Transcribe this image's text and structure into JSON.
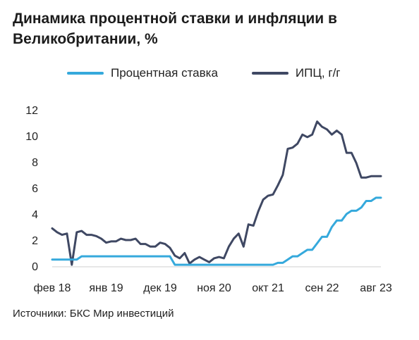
{
  "title": "Динамика процентной ставки и инфляции в Великобритании, %",
  "source": "Источники: БКС Мир инвестиций",
  "colors": {
    "rate": "#35a9dc",
    "cpi": "#3f4863",
    "axis": "#222222"
  },
  "chart_data": {
    "type": "line",
    "x_unit": "month index from Feb 2018",
    "ylim": [
      0,
      12
    ],
    "yticks": [
      0,
      2,
      4,
      6,
      8,
      10,
      12
    ],
    "xticks": [
      {
        "label": "фев 18",
        "x": 0
      },
      {
        "label": "янв 19",
        "x": 11
      },
      {
        "label": "дек 19",
        "x": 22
      },
      {
        "label": "ноя 20",
        "x": 33
      },
      {
        "label": "окт 21",
        "x": 44
      },
      {
        "label": "сен 22",
        "x": 55
      },
      {
        "label": "авг 23",
        "x": 66
      }
    ],
    "legend": [
      "Процентная ставка",
      "ИПЦ, г/г"
    ],
    "series": [
      {
        "name": "Процентная ставка",
        "color": "#35a9dc",
        "x": [
          0,
          5,
          6,
          24,
          25,
          26,
          45,
          46,
          47,
          48,
          49,
          50,
          51,
          52,
          53,
          54,
          55,
          56,
          57,
          58,
          59,
          60,
          61,
          62,
          63,
          64,
          65,
          66,
          67
        ],
        "values": [
          0.5,
          0.5,
          0.75,
          0.75,
          0.1,
          0.1,
          0.1,
          0.25,
          0.25,
          0.5,
          0.75,
          0.75,
          1.0,
          1.25,
          1.25,
          1.75,
          2.25,
          2.25,
          3.0,
          3.5,
          3.5,
          4.0,
          4.25,
          4.25,
          4.5,
          5.0,
          5.0,
          5.25,
          5.25
        ]
      },
      {
        "name": "ИПЦ, г/г",
        "color": "#3f4863",
        "x": [
          0,
          1,
          2,
          3,
          4,
          5,
          6,
          7,
          8,
          9,
          10,
          11,
          12,
          13,
          14,
          15,
          16,
          17,
          18,
          19,
          20,
          21,
          22,
          23,
          24,
          25,
          26,
          27,
          28,
          29,
          30,
          31,
          32,
          33,
          34,
          35,
          36,
          37,
          38,
          39,
          40,
          41,
          42,
          43,
          44,
          45,
          46,
          47,
          48,
          49,
          50,
          51,
          52,
          53,
          54,
          55,
          56,
          57,
          58,
          59,
          60,
          61,
          62,
          63,
          64,
          65,
          66,
          67
        ],
        "values": [
          2.9,
          2.6,
          2.4,
          2.5,
          0.1,
          2.6,
          2.7,
          2.4,
          2.4,
          2.3,
          2.1,
          1.8,
          1.9,
          1.9,
          2.1,
          2.0,
          2.0,
          2.1,
          1.7,
          1.7,
          1.5,
          1.5,
          1.8,
          1.7,
          1.4,
          0.8,
          0.6,
          1.0,
          0.2,
          0.5,
          0.7,
          0.5,
          0.3,
          0.6,
          0.7,
          0.6,
          1.5,
          2.1,
          2.5,
          1.5,
          3.2,
          3.1,
          4.2,
          5.1,
          5.4,
          5.5,
          6.2,
          7.0,
          9.0,
          9.1,
          9.4,
          10.1,
          9.9,
          10.1,
          11.1,
          10.7,
          10.5,
          10.1,
          10.4,
          10.1,
          8.7,
          8.7,
          7.9,
          6.8,
          6.8,
          6.9,
          6.9,
          6.9
        ]
      }
    ]
  }
}
